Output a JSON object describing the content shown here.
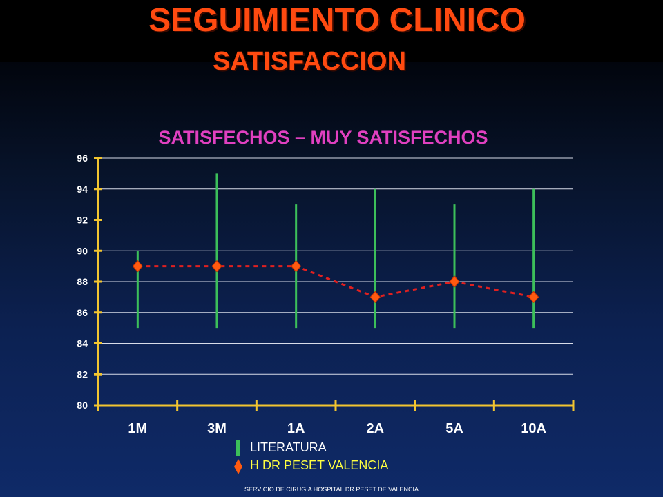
{
  "header": {
    "title": "SEGUIMIENTO CLINICO",
    "subtitle": "SATISFACCION"
  },
  "footer": "SERVICIO DE CIRUGIA HOSPITAL DR PESET DE VALENCIA",
  "colors": {
    "title": "#ff4a10",
    "chart_title": "#e040c0",
    "axis": "#f2c530",
    "literature": "#3cbf5a",
    "hospital_marker": "#ff5a10",
    "hospital_line": "#e02020"
  },
  "chart_data": {
    "type": "line",
    "title": "SATISFECHOS – MUY SATISFECHOS",
    "categories": [
      "1M",
      "3M",
      "1A",
      "2A",
      "5A",
      "10A"
    ],
    "ylim": [
      80,
      96
    ],
    "yticks": [
      80,
      82,
      84,
      86,
      88,
      90,
      92,
      94,
      96
    ],
    "grid": true,
    "legend_placement": "bottom",
    "series": [
      {
        "name": "LITERATURA",
        "kind": "range",
        "low": [
          85,
          85,
          85,
          85,
          85,
          85
        ],
        "high": [
          90,
          95,
          93,
          94,
          93,
          94
        ]
      },
      {
        "name": "H DR PESET VALENCIA",
        "kind": "line",
        "values": [
          89,
          89,
          89,
          87,
          88,
          87
        ]
      }
    ]
  }
}
